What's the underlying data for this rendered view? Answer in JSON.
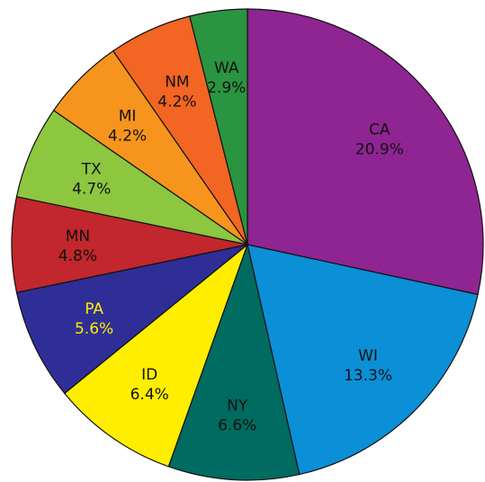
{
  "chart_data": {
    "type": "pie",
    "title": "",
    "categories": [
      "CA",
      "WI",
      "NY",
      "ID",
      "PA",
      "MN",
      "TX",
      "MI",
      "NM",
      "WA"
    ],
    "values": [
      20.9,
      13.3,
      6.6,
      6.4,
      5.6,
      4.8,
      4.7,
      4.2,
      4.2,
      2.9
    ],
    "value_labels": [
      "20.9%",
      "13.3%",
      "6.6%",
      "6.4%",
      "5.6%",
      "4.8%",
      "4.7%",
      "4.2%",
      "4.2%",
      "2.9%"
    ],
    "colors": [
      "#8e2592",
      "#0b8fd6",
      "#006b60",
      "#ffee00",
      "#2e2e96",
      "#c1272d",
      "#8dc63f",
      "#f7941d",
      "#f26522",
      "#2a9440"
    ],
    "label_colors": [
      "#111111",
      "#111111",
      "#111111",
      "#111111",
      "#ffee00",
      "#111111",
      "#111111",
      "#111111",
      "#111111",
      "#111111"
    ],
    "legend": "none",
    "direction": "clockwise",
    "start_angle": "top"
  }
}
